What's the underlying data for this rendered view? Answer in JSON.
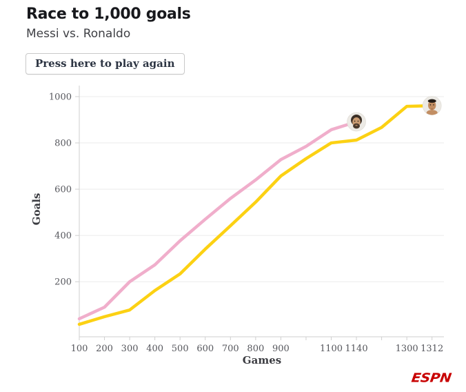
{
  "header": {
    "title": "Race to 1,000 goals",
    "subtitle": "Messi vs. Ronaldo",
    "play_button_label": "Press here to play again"
  },
  "footer": {
    "logo_text": "ESPN"
  },
  "chart_data": {
    "type": "line",
    "title": "Race to 1,000 goals",
    "subtitle": "Messi vs. Ronaldo",
    "xlabel": "Games",
    "ylabel": "Goals",
    "x_slots": [
      100,
      200,
      300,
      400,
      500,
      600,
      700,
      800,
      900,
      1000,
      1100,
      1140,
      1200,
      1300,
      1312
    ],
    "x_labeled_ticks": [
      100,
      200,
      300,
      400,
      500,
      600,
      700,
      800,
      900,
      1100,
      1140,
      1300,
      1312
    ],
    "y_ticks": [
      200,
      400,
      600,
      800,
      1000
    ],
    "ylim": [
      0,
      1040
    ],
    "grid": true,
    "legend": "avatar-markers-at-line-ends",
    "colors": {
      "messi_line": "#f0aecb",
      "ronaldo_line": "#fcd113",
      "grid": "#ebebeb",
      "axis": "#cfcfcf"
    },
    "series": [
      {
        "name": "Messi",
        "color": "#f0aecb",
        "avatar": "messi-avatar",
        "games": [
          100,
          200,
          300,
          400,
          500,
          600,
          700,
          800,
          900,
          1000,
          1100,
          1140
        ],
        "goals": [
          40,
          90,
          200,
          273,
          377,
          470,
          560,
          640,
          728,
          785,
          857,
          891
        ]
      },
      {
        "name": "Ronaldo",
        "color": "#fcd113",
        "avatar": "ronaldo-avatar",
        "games": [
          100,
          200,
          300,
          400,
          500,
          600,
          700,
          800,
          900,
          1000,
          1100,
          1140,
          1200,
          1300,
          1312
        ],
        "goals": [
          16,
          49,
          78,
          162,
          234,
          341,
          442,
          544,
          657,
          732,
          800,
          812,
          867,
          958,
          961
        ]
      }
    ]
  }
}
